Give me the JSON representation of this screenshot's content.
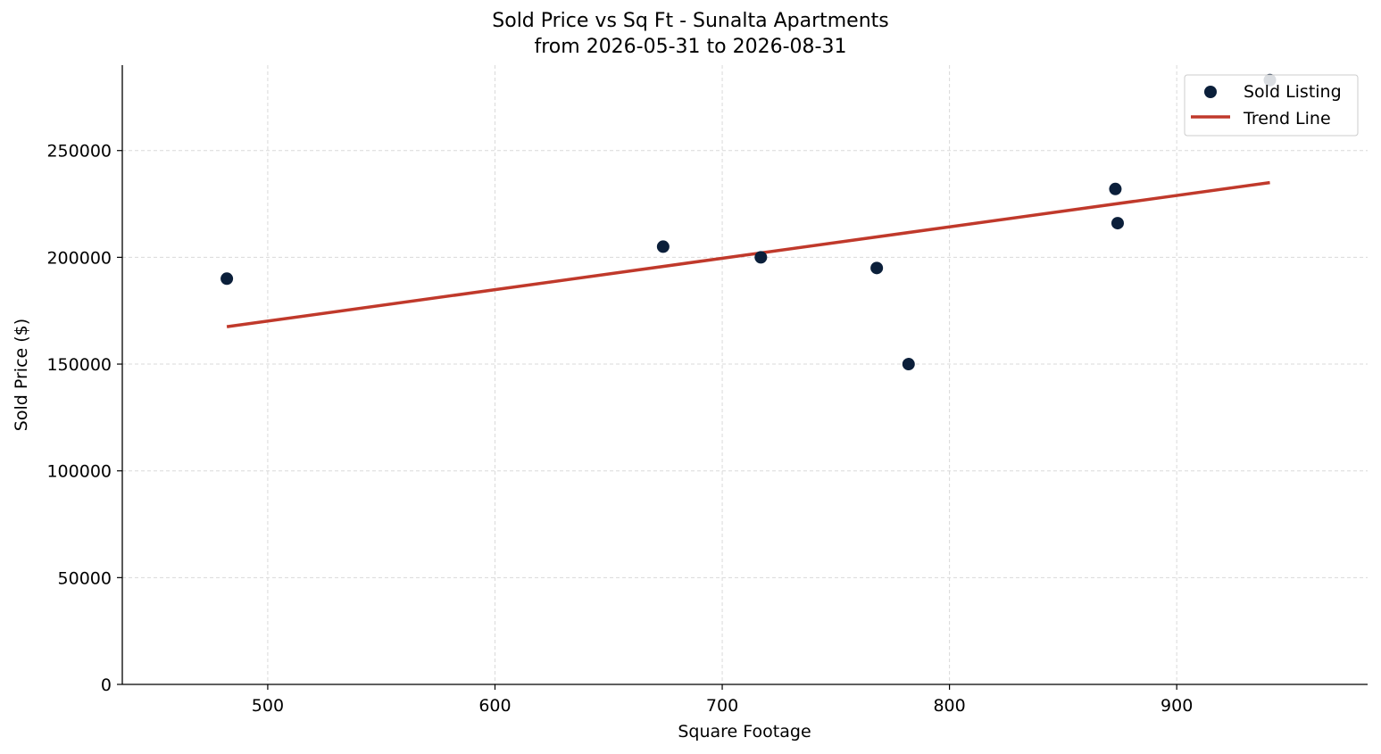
{
  "chart_data": {
    "type": "scatter",
    "title": "Sold Price vs Sq Ft - Sunalta Apartments",
    "subtitle": "from 2026-05-31 to 2026-08-31",
    "xlabel": "Square Footage",
    "ylabel": "Sold Price ($)",
    "xlim": [
      436,
      984
    ],
    "ylim": [
      0,
      290000
    ],
    "xticks": [
      500,
      600,
      700,
      800,
      900
    ],
    "yticks": [
      0,
      50000,
      100000,
      150000,
      200000,
      250000
    ],
    "grid": true,
    "legend_position": "top-right",
    "series": [
      {
        "name": "Sold Listing",
        "kind": "scatter",
        "color": "#0b1f3a",
        "points": [
          {
            "x": 482,
            "y": 190000
          },
          {
            "x": 674,
            "y": 205000
          },
          {
            "x": 717,
            "y": 200000
          },
          {
            "x": 768,
            "y": 195000
          },
          {
            "x": 782,
            "y": 150000
          },
          {
            "x": 873,
            "y": 232000
          },
          {
            "x": 874,
            "y": 216000
          },
          {
            "x": 941,
            "y": 283000
          }
        ]
      },
      {
        "name": "Trend Line",
        "kind": "line",
        "color": "#c0392b",
        "points": [
          {
            "x": 482,
            "y": 167500
          },
          {
            "x": 941,
            "y": 235000
          }
        ]
      }
    ]
  }
}
